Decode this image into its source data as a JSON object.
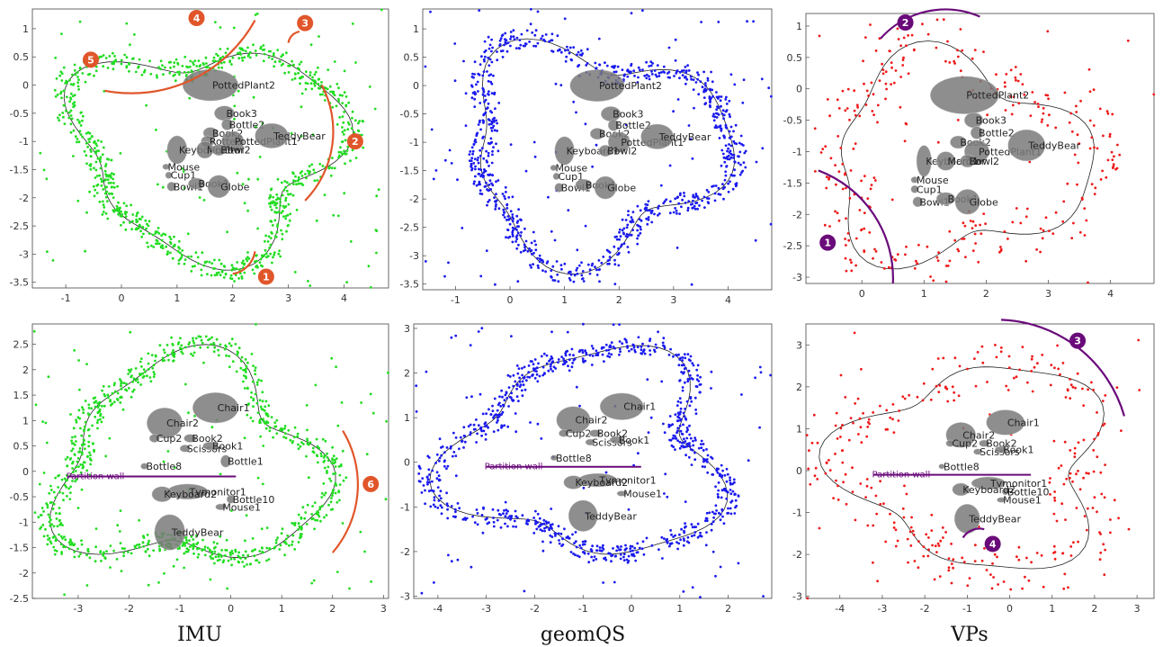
{
  "chart_data": [
    {
      "type": "scatter",
      "panel": "top-left",
      "color": "#22dd22",
      "xlim": [
        -1.6,
        4.8
      ],
      "ylim": [
        -3.6,
        1.35
      ],
      "xticks": [
        -1,
        0,
        1,
        2,
        3,
        4
      ],
      "yticks": [
        1,
        0.5,
        0,
        -0.5,
        -1,
        -1.5,
        -2,
        -2.5,
        -3,
        -3.5
      ],
      "objects": [
        {
          "label": "PottedPlant2",
          "x": 1.6,
          "y": 0.0,
          "rx": 0.5,
          "ry": 0.28
        },
        {
          "label": "Book3",
          "x": 1.85,
          "y": -0.5,
          "rx": 0.18,
          "ry": 0.13
        },
        {
          "label": "Bottle2",
          "x": 1.9,
          "y": -0.7,
          "rx": 0.1,
          "ry": 0.1
        },
        {
          "label": "Book2",
          "x": 1.6,
          "y": -0.85,
          "rx": 0.13,
          "ry": 0.1
        },
        {
          "label": "Rotted",
          "x": 1.55,
          "y": -1.0,
          "rx": 0.12,
          "ry": 0.1
        },
        {
          "label": "PottedPlant1",
          "x": 2.0,
          "y": -1.0,
          "rx": 0.2,
          "ry": 0.18
        },
        {
          "label": "TeddyBear",
          "x": 2.7,
          "y": -0.9,
          "rx": 0.3,
          "ry": 0.22
        },
        {
          "label": "Keyboard1",
          "x": 1.0,
          "y": -1.15,
          "rx": 0.18,
          "ry": 0.25
        },
        {
          "label": "Monitor",
          "x": 1.5,
          "y": -1.15,
          "rx": 0.15,
          "ry": 0.15
        },
        {
          "label": "Bowl2",
          "x": 1.75,
          "y": -1.15,
          "rx": 0.12,
          "ry": 0.1
        },
        {
          "label": "Mouse",
          "x": 0.8,
          "y": -1.45,
          "rx": 0.06,
          "ry": 0.05
        },
        {
          "label": "Cup1",
          "x": 0.85,
          "y": -1.6,
          "rx": 0.06,
          "ry": 0.06
        },
        {
          "label": "Bowl1",
          "x": 0.9,
          "y": -1.8,
          "rx": 0.08,
          "ry": 0.08
        },
        {
          "label": "Book1",
          "x": 1.35,
          "y": -1.75,
          "rx": 0.15,
          "ry": 0.1
        },
        {
          "label": "Globe",
          "x": 1.75,
          "y": -1.8,
          "rx": 0.2,
          "ry": 0.2
        }
      ],
      "markers": [
        {
          "label": "1",
          "arc": [
            [
              2.4,
              -2.95
            ],
            [
              2.0,
              -3.35
            ]
          ],
          "bx": 2.6,
          "by": -3.4,
          "c": "#e0562a"
        },
        {
          "label": "2",
          "arc": [
            [
              3.6,
              0.0
            ],
            [
              3.3,
              -2.05
            ]
          ],
          "bx": 4.2,
          "by": -1.0,
          "c": "#e0562a"
        },
        {
          "label": "3",
          "arc": [
            [
              3.0,
              0.75
            ],
            [
              3.2,
              0.95
            ]
          ],
          "bx": 3.3,
          "by": 1.1,
          "c": "#e0562a"
        },
        {
          "label": "4",
          "arc": [
            [
              2.4,
              1.15
            ],
            [
              -0.3,
              -0.1
            ]
          ],
          "bx": 1.35,
          "by": 1.4,
          "c": "#e0562a"
        },
        {
          "label": "5",
          "arc": [
            [
              0,
              0
            ],
            [
              0,
              0
            ]
          ],
          "bx": -0.55,
          "by": 0.45,
          "c": "#e0562a"
        }
      ]
    },
    {
      "type": "scatter",
      "panel": "top-middle",
      "color": "#1a1aee",
      "xlim": [
        -1.6,
        4.8
      ],
      "ylim": [
        -3.6,
        1.35
      ],
      "xticks": [
        -1,
        0,
        1,
        2,
        3,
        4
      ],
      "yticks": [
        1,
        0.5,
        0,
        -0.5,
        -1,
        -1.5,
        -2,
        -2.5,
        -3,
        -3.5
      ],
      "objects": [
        {
          "label": "PottedPlant2",
          "x": 1.6,
          "y": 0.0,
          "rx": 0.5,
          "ry": 0.28
        },
        {
          "label": "Book3",
          "x": 1.85,
          "y": -0.5,
          "rx": 0.18,
          "ry": 0.13
        },
        {
          "label": "Bottle2",
          "x": 1.9,
          "y": -0.7,
          "rx": 0.1,
          "ry": 0.1
        },
        {
          "label": "Book2",
          "x": 1.6,
          "y": -0.85,
          "rx": 0.13,
          "ry": 0.1
        },
        {
          "label": "PottedPlant1",
          "x": 2.0,
          "y": -1.0,
          "rx": 0.2,
          "ry": 0.18
        },
        {
          "label": "TeddyBear",
          "x": 2.7,
          "y": -0.9,
          "rx": 0.3,
          "ry": 0.22
        },
        {
          "label": "Keyboard1",
          "x": 1.0,
          "y": -1.15,
          "rx": 0.18,
          "ry": 0.25
        },
        {
          "label": "Bowl2",
          "x": 1.75,
          "y": -1.15,
          "rx": 0.12,
          "ry": 0.1
        },
        {
          "label": "Mouse",
          "x": 0.8,
          "y": -1.45,
          "rx": 0.06,
          "ry": 0.05
        },
        {
          "label": "Cup1",
          "x": 0.85,
          "y": -1.6,
          "rx": 0.06,
          "ry": 0.06
        },
        {
          "label": "Bowl1",
          "x": 0.9,
          "y": -1.8,
          "rx": 0.08,
          "ry": 0.08
        },
        {
          "label": "Book1",
          "x": 1.35,
          "y": -1.75,
          "rx": 0.15,
          "ry": 0.1
        },
        {
          "label": "Globe",
          "x": 1.75,
          "y": -1.8,
          "rx": 0.2,
          "ry": 0.2
        }
      ],
      "markers": []
    },
    {
      "type": "scatter",
      "panel": "top-right",
      "color": "#ee1a1a",
      "xlim": [
        -0.9,
        4.7
      ],
      "ylim": [
        -3.1,
        1.2
      ],
      "xticks": [
        0,
        1,
        2,
        3,
        4
      ],
      "yticks": [
        1,
        0.5,
        0,
        -0.5,
        -1,
        -1.5,
        -2,
        -2.5,
        -3
      ],
      "objects": [
        {
          "label": "PottedPlant2",
          "x": 1.65,
          "y": -0.1,
          "rx": 0.55,
          "ry": 0.3
        },
        {
          "label": "Book3",
          "x": 1.8,
          "y": -0.5,
          "rx": 0.15,
          "ry": 0.12
        },
        {
          "label": "Bottle2",
          "x": 1.85,
          "y": -0.7,
          "rx": 0.1,
          "ry": 0.1
        },
        {
          "label": "Book2",
          "x": 1.55,
          "y": -0.85,
          "rx": 0.13,
          "ry": 0.1
        },
        {
          "label": "PottedPlant1",
          "x": 1.85,
          "y": -1.0,
          "rx": 0.2,
          "ry": 0.18
        },
        {
          "label": "TeddyBear",
          "x": 2.65,
          "y": -0.9,
          "rx": 0.3,
          "ry": 0.25
        },
        {
          "label": "Keyboard1",
          "x": 1.0,
          "y": -1.15,
          "rx": 0.12,
          "ry": 0.25
        },
        {
          "label": "Monitor",
          "x": 1.35,
          "y": -1.15,
          "rx": 0.15,
          "ry": 0.15
        },
        {
          "label": "Bowl2",
          "x": 1.7,
          "y": -1.15,
          "rx": 0.12,
          "ry": 0.1
        },
        {
          "label": "Mouse",
          "x": 0.85,
          "y": -1.45,
          "rx": 0.06,
          "ry": 0.05
        },
        {
          "label": "Cup1",
          "x": 0.85,
          "y": -1.6,
          "rx": 0.06,
          "ry": 0.06
        },
        {
          "label": "Bowl1",
          "x": 0.9,
          "y": -1.8,
          "rx": 0.08,
          "ry": 0.08
        },
        {
          "label": "Book1",
          "x": 1.35,
          "y": -1.75,
          "rx": 0.15,
          "ry": 0.1
        },
        {
          "label": "Globe",
          "x": 1.7,
          "y": -1.8,
          "rx": 0.2,
          "ry": 0.2
        }
      ],
      "markers": [
        {
          "label": "1",
          "arc": [
            [
              -0.7,
              -1.3
            ],
            [
              0.5,
              -3.1
            ]
          ],
          "bx": -0.55,
          "by": -2.45,
          "c": "#6a0a7a"
        },
        {
          "label": "2",
          "arc": [
            [
              0.3,
              0.8
            ],
            [
              1.9,
              1.15
            ]
          ],
          "bx": 0.7,
          "by": 1.25,
          "c": "#6a0a7a"
        }
      ]
    },
    {
      "type": "scatter",
      "panel": "bottom-left",
      "color": "#22dd22",
      "xlim": [
        -3.9,
        3.1
      ],
      "ylim": [
        -2.5,
        2.9
      ],
      "xticks": [
        -3,
        -2,
        -1,
        0,
        1,
        2,
        3
      ],
      "yticks": [
        2.5,
        2,
        1.5,
        1,
        0.5,
        0,
        -0.5,
        -1,
        -1.5,
        -2,
        -2.5
      ],
      "objects": [
        {
          "label": "Chair1",
          "x": -0.3,
          "y": 1.25,
          "rx": 0.45,
          "ry": 0.3
        },
        {
          "label": "Chair2",
          "x": -1.3,
          "y": 0.95,
          "rx": 0.35,
          "ry": 0.3
        },
        {
          "label": "Cup2",
          "x": -1.5,
          "y": 0.65,
          "rx": 0.1,
          "ry": 0.08
        },
        {
          "label": "Book2",
          "x": -0.8,
          "y": 0.65,
          "rx": 0.12,
          "ry": 0.08
        },
        {
          "label": "Scissors",
          "x": -0.9,
          "y": 0.45,
          "rx": 0.1,
          "ry": 0.07
        },
        {
          "label": "Book1",
          "x": -0.4,
          "y": 0.5,
          "rx": 0.15,
          "ry": 0.08
        },
        {
          "label": "Bottle1",
          "x": -0.1,
          "y": 0.2,
          "rx": 0.1,
          "ry": 0.12
        },
        {
          "label": "Bottle8",
          "x": -1.7,
          "y": 0.1,
          "rx": 0.07,
          "ry": 0.06
        },
        {
          "label": "Tvmonitor1",
          "x": -0.85,
          "y": -0.4,
          "rx": 0.4,
          "ry": 0.15
        },
        {
          "label": "Keyboard2",
          "x": -1.35,
          "y": -0.45,
          "rx": 0.2,
          "ry": 0.15
        },
        {
          "label": "Bottle10",
          "x": 0.0,
          "y": -0.55,
          "rx": 0.08,
          "ry": 0.08
        },
        {
          "label": "Mouse1",
          "x": -0.2,
          "y": -0.7,
          "rx": 0.1,
          "ry": 0.06
        },
        {
          "label": "TeddyBear",
          "x": -1.2,
          "y": -1.2,
          "rx": 0.3,
          "ry": 0.35
        }
      ],
      "wall": {
        "label": "Partition wall",
        "x0": -3.2,
        "x1": 0.1,
        "y": -0.1
      },
      "markers": [
        {
          "label": "6",
          "arc": [
            [
              2.2,
              0.8
            ],
            [
              2.0,
              -1.6
            ]
          ],
          "bx": 2.75,
          "by": -0.25,
          "c": "#e0562a"
        }
      ]
    },
    {
      "type": "scatter",
      "panel": "bottom-middle",
      "color": "#1a1aee",
      "xlim": [
        -4.5,
        2.9
      ],
      "ylim": [
        -3.05,
        3.1
      ],
      "xticks": [
        -4,
        -3,
        -2,
        -1,
        0,
        1,
        2
      ],
      "yticks": [
        3,
        2,
        1,
        0,
        -1,
        -2,
        -3
      ],
      "objects": [
        {
          "label": "Chair1",
          "x": -0.2,
          "y": 1.25,
          "rx": 0.45,
          "ry": 0.3
        },
        {
          "label": "Chair2",
          "x": -1.2,
          "y": 0.95,
          "rx": 0.35,
          "ry": 0.3
        },
        {
          "label": "Cup2",
          "x": -1.4,
          "y": 0.65,
          "rx": 0.1,
          "ry": 0.08
        },
        {
          "label": "Book2",
          "x": -0.75,
          "y": 0.65,
          "rx": 0.12,
          "ry": 0.08
        },
        {
          "label": "Scissors",
          "x": -0.85,
          "y": 0.45,
          "rx": 0.1,
          "ry": 0.07
        },
        {
          "label": "Book1",
          "x": -0.3,
          "y": 0.5,
          "rx": 0.15,
          "ry": 0.08
        },
        {
          "label": "Bottle8",
          "x": -1.6,
          "y": 0.1,
          "rx": 0.07,
          "ry": 0.06
        },
        {
          "label": "Tvmonitor1",
          "x": -0.7,
          "y": -0.4,
          "rx": 0.4,
          "ry": 0.15
        },
        {
          "label": "Keyboard2",
          "x": -1.2,
          "y": -0.45,
          "rx": 0.2,
          "ry": 0.15
        },
        {
          "label": "Mouse1",
          "x": -0.2,
          "y": -0.7,
          "rx": 0.1,
          "ry": 0.06
        },
        {
          "label": "TeddyBear",
          "x": -1.0,
          "y": -1.2,
          "rx": 0.3,
          "ry": 0.35
        }
      ],
      "wall": {
        "label": "Partition wall",
        "x0": -3.0,
        "x1": 0.2,
        "y": -0.1
      },
      "markers": []
    },
    {
      "type": "scatter",
      "panel": "bottom-right",
      "color": "#ee1a1a",
      "xlim": [
        -4.8,
        3.4
      ],
      "ylim": [
        -3.05,
        3.5
      ],
      "xticks": [
        -4,
        -3,
        -2,
        -1,
        0,
        1,
        2,
        3
      ],
      "yticks": [
        3,
        2,
        1,
        0,
        -1,
        -2,
        -3
      ],
      "objects": [
        {
          "label": "Chair1",
          "x": -0.1,
          "y": 1.15,
          "rx": 0.45,
          "ry": 0.3
        },
        {
          "label": "Chair2",
          "x": -1.15,
          "y": 0.85,
          "rx": 0.35,
          "ry": 0.3
        },
        {
          "label": "Cup2",
          "x": -1.4,
          "y": 0.65,
          "rx": 0.1,
          "ry": 0.08
        },
        {
          "label": "Book2",
          "x": -0.6,
          "y": 0.65,
          "rx": 0.12,
          "ry": 0.08
        },
        {
          "label": "Scissors",
          "x": -0.75,
          "y": 0.45,
          "rx": 0.1,
          "ry": 0.07
        },
        {
          "label": "Book1",
          "x": -0.2,
          "y": 0.5,
          "rx": 0.15,
          "ry": 0.08
        },
        {
          "label": "Bottle8",
          "x": -1.6,
          "y": 0.1,
          "rx": 0.07,
          "ry": 0.06
        },
        {
          "label": "Tvmonitor1",
          "x": -0.5,
          "y": -0.3,
          "rx": 0.4,
          "ry": 0.15
        },
        {
          "label": "Bottle10",
          "x": -0.1,
          "y": -0.5,
          "rx": 0.08,
          "ry": 0.08
        },
        {
          "label": "Keyboard2",
          "x": -1.15,
          "y": -0.45,
          "rx": 0.2,
          "ry": 0.15
        },
        {
          "label": "Mouse1",
          "x": -0.2,
          "y": -0.7,
          "rx": 0.1,
          "ry": 0.06
        },
        {
          "label": "TeddyBear",
          "x": -1.0,
          "y": -1.15,
          "rx": 0.3,
          "ry": 0.35
        }
      ],
      "wall": {
        "label": "Partition wall",
        "x0": -3.2,
        "x1": 0.5,
        "y": -0.1
      },
      "markers": [
        {
          "label": "3",
          "arc": [
            [
              -0.2,
              3.6
            ],
            [
              2.7,
              1.3
            ]
          ],
          "bx": 1.6,
          "by": 3.1,
          "c": "#6a0a7a"
        },
        {
          "label": "4",
          "arc": [
            [
              -1.1,
              -1.6
            ],
            [
              -0.6,
              -1.4
            ]
          ],
          "bx": -0.4,
          "by": -1.75,
          "c": "#6a0a7a"
        }
      ]
    }
  ],
  "captions": {
    "left": "IMU",
    "middle": "geomQS",
    "right": "VPs"
  }
}
